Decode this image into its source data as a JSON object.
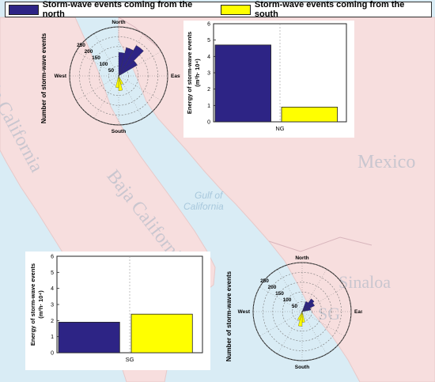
{
  "colors": {
    "north": "#2d2485",
    "south": "#ffff00",
    "land": "#f7dede",
    "water": "#d9ecf5"
  },
  "legend": {
    "north_label": "Storm-wave events coming from the north",
    "south_label": "Storm-wave events coming from the south"
  },
  "map_labels": {
    "mexico": "Mexico",
    "baja_california": "Baja California",
    "baja_california_sur": "Baja California Sur",
    "gulf_line1": "Gulf of",
    "gulf_line2": "California",
    "sinaloa": "Sinaloa",
    "sg_overlay": "SG"
  },
  "chart_data": [
    {
      "id": "rose-north",
      "type": "polar-histogram",
      "ylabel": "Number of storm-wave events",
      "direction_labels": [
        "North",
        "East",
        "South",
        "West"
      ],
      "radial_ticks": [
        50,
        100,
        150,
        200,
        250
      ],
      "rlim": [
        0,
        250
      ],
      "series": [
        {
          "name": "Storm-wave events coming from the north",
          "color": "#2d2485",
          "sectors": [
            {
              "from": 0,
              "to": 15,
              "r": 120
            },
            {
              "from": 15,
              "to": 30,
              "r": 150
            },
            {
              "from": 30,
              "to": 45,
              "r": 180
            },
            {
              "from": 45,
              "to": 60,
              "r": 110
            }
          ]
        },
        {
          "name": "Storm-wave events coming from the south",
          "color": "#ffff00",
          "sectors": [
            {
              "from": 150,
              "to": 165,
              "r": 45
            },
            {
              "from": 165,
              "to": 180,
              "r": 75
            },
            {
              "from": 180,
              "to": 195,
              "r": 60
            }
          ]
        }
      ]
    },
    {
      "id": "bar-ng",
      "type": "bar",
      "categories": [
        "NG"
      ],
      "series": [
        {
          "name": "Storm-wave events coming from the north",
          "values": [
            4.7
          ],
          "color": "#2d2485"
        },
        {
          "name": "Storm-wave events coming from the south",
          "values": [
            0.9
          ],
          "color": "#ffff00"
        }
      ],
      "ylabel": "Energy of storm-wave events",
      "yunit": "(m²h· 10⁴)",
      "ylim": [
        0,
        6
      ],
      "yticks": [
        0,
        1,
        2,
        3,
        4,
        5,
        6
      ]
    },
    {
      "id": "bar-sg",
      "type": "bar",
      "categories": [
        "SG"
      ],
      "series": [
        {
          "name": "Storm-wave events coming from the north",
          "values": [
            1.9
          ],
          "color": "#2d2485"
        },
        {
          "name": "Storm-wave events coming from the south",
          "values": [
            2.4
          ],
          "color": "#ffff00"
        }
      ],
      "ylabel": "Energy of storm-wave events",
      "yunit": "(m²h· 10⁴)",
      "ylim": [
        0,
        6
      ],
      "yticks": [
        0,
        1,
        2,
        3,
        4,
        5,
        6
      ]
    },
    {
      "id": "rose-south",
      "type": "polar-histogram",
      "ylabel": "Number of storm-wave events",
      "direction_labels": [
        "North",
        "East",
        "South",
        "West"
      ],
      "radial_ticks": [
        50,
        100,
        150,
        200,
        250
      ],
      "rlim": [
        0,
        250
      ],
      "series": [
        {
          "name": "Storm-wave events coming from the north",
          "color": "#2d2485",
          "sectors": [
            {
              "from": 20,
              "to": 35,
              "r": 55
            },
            {
              "from": 35,
              "to": 50,
              "r": 80
            },
            {
              "from": 50,
              "to": 65,
              "r": 70
            },
            {
              "from": 65,
              "to": 80,
              "r": 45
            }
          ]
        },
        {
          "name": "Storm-wave events coming from the south",
          "color": "#ffff00",
          "sectors": [
            {
              "from": 165,
              "to": 180,
              "r": 55
            },
            {
              "from": 180,
              "to": 195,
              "r": 75
            },
            {
              "from": 195,
              "to": 210,
              "r": 45
            }
          ]
        }
      ]
    }
  ]
}
